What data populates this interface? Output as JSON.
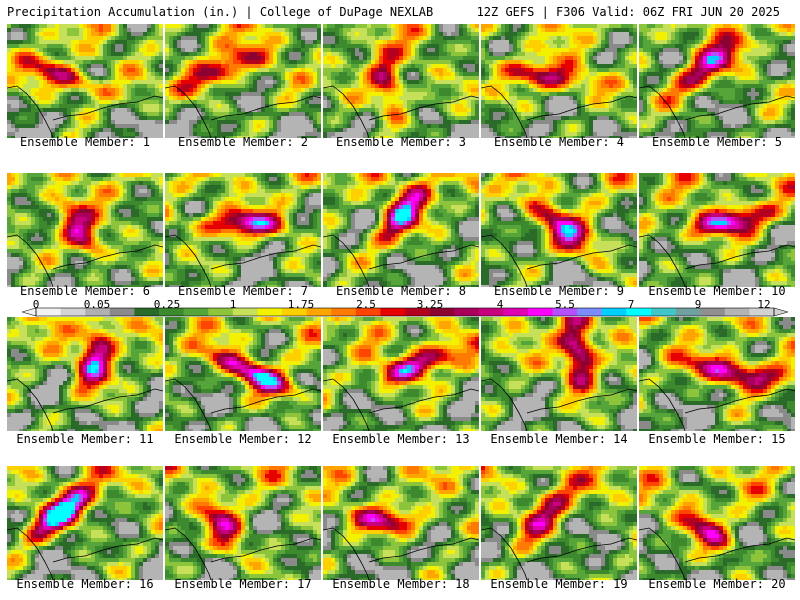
{
  "header": {
    "left": "Precipitation Accumulation (in.) | College of DuPage NEXLAB",
    "right": "12Z GEFS | F306 Valid: 06Z FRI JUN 20 2025"
  },
  "colorbar": {
    "labels": [
      "0",
      "0.05",
      "0.25",
      "1",
      "1.75",
      "2.5",
      "3.25",
      "4",
      "5.5",
      "7",
      "9",
      "12"
    ],
    "colors": [
      "#f2f2f2",
      "#d4d4d4",
      "#b0b0b0",
      "#8a8a8a",
      "#2a6b2a",
      "#3d8a2e",
      "#55a53a",
      "#8cc43c",
      "#c6e05a",
      "#f2f200",
      "#ffd000",
      "#ffa500",
      "#ff7a00",
      "#ff4500",
      "#e60000",
      "#b4001e",
      "#8c0032",
      "#a8005a",
      "#c8007e",
      "#e000b4",
      "#ff00ff",
      "#b450ff",
      "#7c8cff",
      "#00d0ff",
      "#00ffff",
      "#40c8c8",
      "#70a0a0",
      "#909090",
      "#b4b4b4",
      "#d2d2d2"
    ]
  },
  "panels": [
    {
      "caption": "Ensemble Member: 1"
    },
    {
      "caption": "Ensemble Member: 2"
    },
    {
      "caption": "Ensemble Member: 3"
    },
    {
      "caption": "Ensemble Member: 4"
    },
    {
      "caption": "Ensemble Member: 5"
    },
    {
      "caption": "Ensemble Member: 6"
    },
    {
      "caption": "Ensemble Member: 7"
    },
    {
      "caption": "Ensemble Member: 8"
    },
    {
      "caption": "Ensemble Member: 9"
    },
    {
      "caption": "Ensemble Member: 10"
    },
    {
      "caption": "Ensemble Member: 11"
    },
    {
      "caption": "Ensemble Member: 12"
    },
    {
      "caption": "Ensemble Member: 13"
    },
    {
      "caption": "Ensemble Member: 14"
    },
    {
      "caption": "Ensemble Member: 15"
    },
    {
      "caption": "Ensemble Member: 16"
    },
    {
      "caption": "Ensemble Member: 17"
    },
    {
      "caption": "Ensemble Member: 18"
    },
    {
      "caption": "Ensemble Member: 19"
    },
    {
      "caption": "Ensemble Member: 20"
    }
  ]
}
